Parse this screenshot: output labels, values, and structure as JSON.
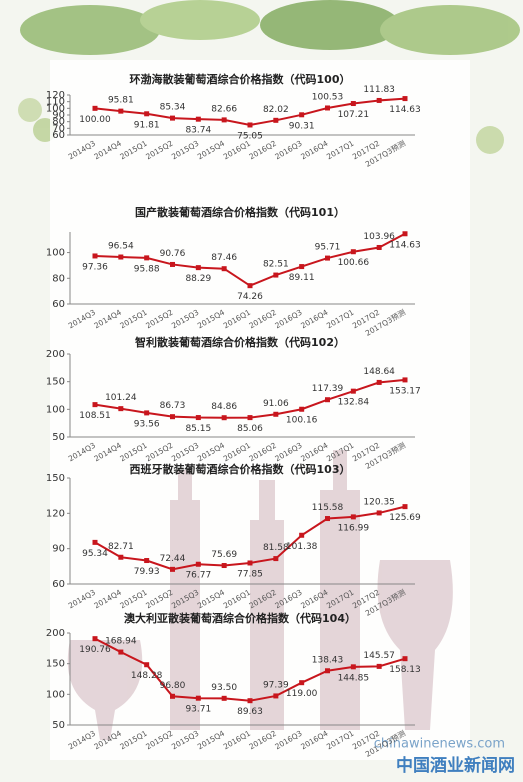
{
  "chart_data": [
    {
      "type": "line",
      "title": "环渤海散装葡萄酒综合价格指数（代码100）",
      "categories": [
        "2014Q3",
        "2014Q4",
        "2015Q1",
        "2015Q2",
        "2015Q3",
        "2015Q4",
        "2016Q1",
        "2016Q2",
        "2016Q3",
        "2016Q4",
        "2017Q1",
        "2017Q2",
        "2017Q3预测"
      ],
      "values": [
        100.0,
        95.81,
        91.81,
        85.34,
        83.74,
        82.66,
        75.05,
        82.02,
        90.31,
        100.53,
        107.21,
        111.83,
        114.63
      ],
      "value_labels": [
        "100.00",
        "95.81",
        "91.81",
        "85.34",
        "83.74",
        "82.66",
        "75.05",
        "82.02",
        "90.31",
        "100.53",
        "107.21",
        "111.83",
        "114.63"
      ],
      "color": "#c8161d",
      "ylim": [
        60,
        120
      ],
      "yticks": [
        60,
        70,
        80,
        90,
        100,
        110,
        120
      ]
    },
    {
      "type": "line",
      "title": "国产散装葡萄酒综合价格指数（代码101）",
      "categories": [
        "2014Q3",
        "2014Q4",
        "2015Q1",
        "2015Q2",
        "2015Q3",
        "2015Q4",
        "2016Q1",
        "2016Q2",
        "2016Q3",
        "2016Q4",
        "2017Q1",
        "2017Q2",
        "2017Q3预测"
      ],
      "values": [
        97.36,
        96.54,
        95.88,
        90.76,
        88.29,
        87.46,
        74.26,
        82.51,
        89.11,
        95.71,
        100.66,
        103.96,
        114.63
      ],
      "color": "#c8161d",
      "ylim": [
        60,
        116
      ],
      "yticks": [
        60,
        80,
        100
      ]
    },
    {
      "type": "line",
      "title": "智利散装葡萄酒综合价格指数（代码102）",
      "categories": [
        "2014Q3",
        "2014Q4",
        "2015Q1",
        "2015Q2",
        "2015Q3",
        "2015Q4",
        "2016Q1",
        "2016Q2",
        "2016Q3",
        "2016Q4",
        "2017Q1",
        "2017Q2",
        "2017Q3预测"
      ],
      "values": [
        108.51,
        101.24,
        93.56,
        86.73,
        85.15,
        84.86,
        85.06,
        91.06,
        100.16,
        117.39,
        132.84,
        148.64,
        153.17
      ],
      "color": "#c8161d",
      "ylim": [
        50,
        200
      ],
      "yticks": [
        50,
        100,
        150,
        200
      ]
    },
    {
      "type": "line",
      "title": "西班牙散装葡萄酒综合价格指数（代码103）",
      "categories": [
        "2014Q3",
        "2014Q4",
        "2015Q1",
        "2015Q2",
        "2015Q3",
        "2015Q4",
        "2016Q1",
        "2016Q2",
        "2016Q3",
        "2016Q4",
        "2017Q1",
        "2017Q2",
        "2017Q3预测"
      ],
      "values": [
        95.34,
        82.71,
        79.93,
        72.44,
        76.77,
        75.69,
        77.85,
        81.58,
        101.38,
        115.58,
        116.99,
        120.35,
        125.69
      ],
      "color": "#c8161d",
      "ylim": [
        60,
        150
      ],
      "yticks": [
        60,
        90,
        120,
        150
      ]
    },
    {
      "type": "line",
      "title": "澳大利亚散装葡萄酒综合价格指数（代码104）",
      "categories": [
        "2014Q3",
        "2014Q4",
        "2015Q1",
        "2015Q2",
        "2015Q3",
        "2015Q4",
        "2016Q1",
        "2016Q2",
        "2016Q3",
        "2016Q4",
        "2017Q1",
        "2017Q2",
        "2017Q3预测"
      ],
      "values": [
        190.76,
        168.94,
        148.28,
        96.8,
        93.71,
        93.5,
        89.63,
        97.39,
        119.0,
        138.43,
        144.85,
        145.57,
        158.13
      ],
      "value_labels": [
        "190.76",
        "168.94",
        "148.28",
        "96.80",
        "93.71",
        "93.50",
        "89.63",
        "97.39",
        "119.00",
        "138.43",
        "144.85",
        "145.57",
        "158.13"
      ],
      "color": "#c8161d",
      "ylim": [
        50,
        200
      ],
      "yticks": [
        50,
        100,
        150,
        200
      ]
    }
  ],
  "watermark": {
    "url": "chinawinenews.com",
    "name": "中国酒业新闻网"
  }
}
